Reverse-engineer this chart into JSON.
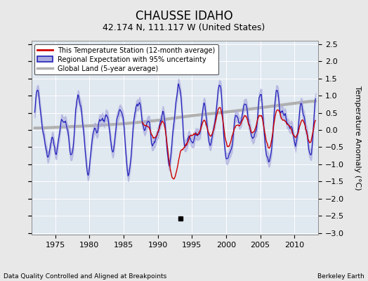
{
  "title": "CHAUSSE IDAHO",
  "subtitle": "42.174 N, 111.117 W (United States)",
  "xlabel_left": "Data Quality Controlled and Aligned at Breakpoints",
  "xlabel_right": "Berkeley Earth",
  "ylabel": "Temperature Anomaly (°C)",
  "xlim": [
    1971.5,
    2013.5
  ],
  "ylim": [
    -3.05,
    2.6
  ],
  "yticks": [
    -3,
    -2.5,
    -2,
    -1.5,
    -1,
    -0.5,
    0,
    0.5,
    1,
    1.5,
    2,
    2.5
  ],
  "ytick_labels": [
    "-3",
    "-2.5",
    "-2",
    "-1.5",
    "-1",
    "-0.5",
    "0",
    "0.5",
    "1",
    "1.5",
    "2",
    "2.5"
  ],
  "xticks": [
    1975,
    1980,
    1985,
    1990,
    1995,
    2000,
    2005,
    2010
  ],
  "station_color": "#cc0000",
  "regional_color": "#2222bb",
  "regional_fill_color": "#aaaadd",
  "global_color": "#b0b0b0",
  "empirical_break_x": 1993.3,
  "empirical_break_y": -2.58,
  "background_color": "#e8e8e8",
  "plot_bg_color": "#e0e8f0",
  "grid_color": "#ffffff",
  "title_fontsize": 12,
  "subtitle_fontsize": 9,
  "tick_fontsize": 8,
  "ylabel_fontsize": 8
}
